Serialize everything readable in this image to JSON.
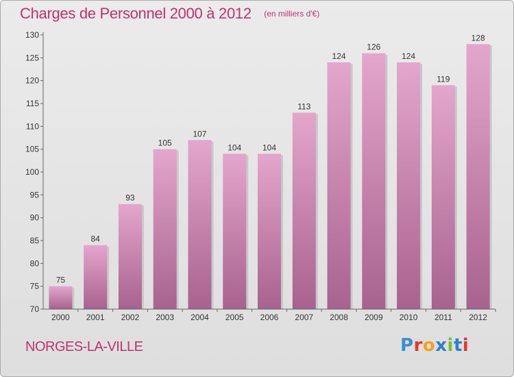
{
  "header": {
    "title": "Charges de Personnel 2000 à 2012",
    "subtitle": "(en milliers d'€)"
  },
  "footer": {
    "commune": "NORGES-LA-VILLE",
    "logo_text": "Proxiti",
    "logo_letter_colors": [
      "#3a8fd6",
      "#e2382a",
      "#f5a21e",
      "#2f7fd0",
      "#7bbf2e",
      "#2f7fd0",
      "#e2382a"
    ]
  },
  "chart_data": {
    "type": "bar",
    "categories": [
      "2000",
      "2001",
      "2002",
      "2003",
      "2004",
      "2005",
      "2006",
      "2007",
      "2008",
      "2009",
      "2010",
      "2011",
      "2012"
    ],
    "values": [
      75,
      84,
      93,
      105,
      107,
      104,
      104,
      113,
      124,
      126,
      124,
      119,
      128
    ],
    "ylim": [
      70,
      130
    ],
    "yticks": [
      70,
      75,
      80,
      85,
      90,
      95,
      100,
      105,
      110,
      115,
      120,
      125,
      130
    ],
    "grid": false,
    "bar_color_top": "#e4a6cc",
    "bar_color_bottom": "#a8628e",
    "xlabel": "",
    "ylabel": ""
  }
}
